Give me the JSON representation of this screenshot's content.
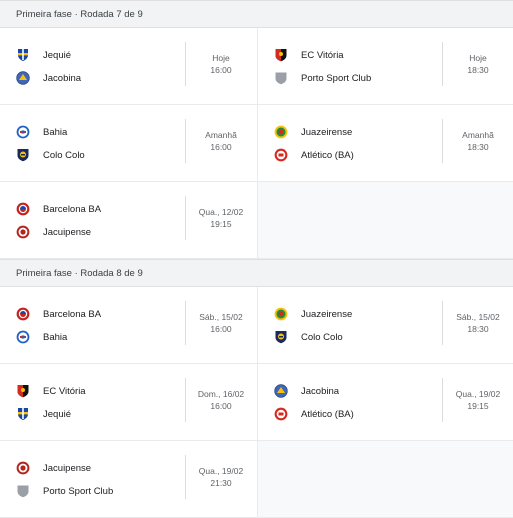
{
  "colors": {
    "header_bg": "#f1f3f4",
    "divider": "#dadce0",
    "text_primary": "#202124",
    "text_secondary": "#5f6368"
  },
  "rounds": [
    {
      "header": "Primeira fase · Rodada 7 de 9",
      "matches": [
        {
          "home": {
            "name": "Jequié",
            "crest": "jequie-crest-icon"
          },
          "away": {
            "name": "Jacobina",
            "crest": "jacobina-crest-icon"
          },
          "day": "Hoje",
          "time": "16:00"
        },
        {
          "home": {
            "name": "EC Vitória",
            "crest": "vitoria-crest-icon"
          },
          "away": {
            "name": "Porto Sport Club",
            "crest": "porto-crest-icon"
          },
          "day": "Hoje",
          "time": "18:30"
        },
        {
          "home": {
            "name": "Bahia",
            "crest": "bahia-crest-icon"
          },
          "away": {
            "name": "Colo Colo",
            "crest": "colo-colo-crest-icon"
          },
          "day": "Amanhã",
          "time": "16:00"
        },
        {
          "home": {
            "name": "Juazeirense",
            "crest": "juazeirense-crest-icon"
          },
          "away": {
            "name": "Atlético (BA)",
            "crest": "atletico-ba-crest-icon"
          },
          "day": "Amanhã",
          "time": "18:30"
        },
        {
          "home": {
            "name": "Barcelona BA",
            "crest": "barcelona-ba-crest-icon"
          },
          "away": {
            "name": "Jacuipense",
            "crest": "jacuipense-crest-icon"
          },
          "day": "Qua., 12/02",
          "time": "19:15"
        }
      ]
    },
    {
      "header": "Primeira fase · Rodada 8 de 9",
      "matches": [
        {
          "home": {
            "name": "Barcelona BA",
            "crest": "barcelona-ba-crest-icon"
          },
          "away": {
            "name": "Bahia",
            "crest": "bahia-crest-icon"
          },
          "day": "Sáb., 15/02",
          "time": "16:00"
        },
        {
          "home": {
            "name": "Juazeirense",
            "crest": "juazeirense-crest-icon"
          },
          "away": {
            "name": "Colo Colo",
            "crest": "colo-colo-crest-icon"
          },
          "day": "Sáb., 15/02",
          "time": "18:30"
        },
        {
          "home": {
            "name": "EC Vitória",
            "crest": "vitoria-crest-icon"
          },
          "away": {
            "name": "Jequié",
            "crest": "jequie-crest-icon"
          },
          "day": "Dom., 16/02",
          "time": "16:00"
        },
        {
          "home": {
            "name": "Jacobina",
            "crest": "jacobina-crest-icon"
          },
          "away": {
            "name": "Atlético (BA)",
            "crest": "atletico-ba-crest-icon"
          },
          "day": "Qua., 19/02",
          "time": "19:15"
        },
        {
          "home": {
            "name": "Jacuipense",
            "crest": "jacuipense-crest-icon"
          },
          "away": {
            "name": "Porto Sport Club",
            "crest": "porto-crest-icon"
          },
          "day": "Qua., 19/02",
          "time": "21:30"
        }
      ]
    }
  ]
}
